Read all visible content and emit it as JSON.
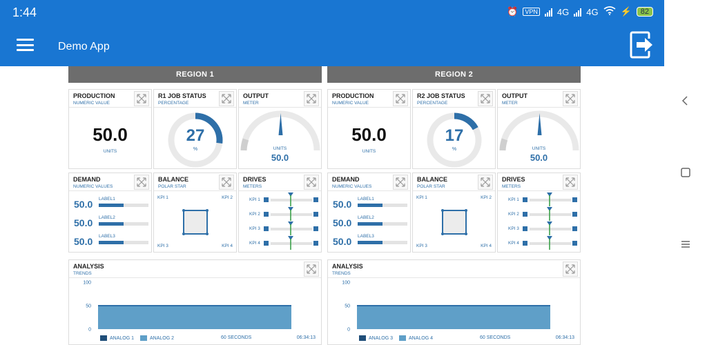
{
  "status_bar": {
    "time": "1:44",
    "vpn": "VPN",
    "net1": "4G",
    "net2": "4G",
    "battery": "82"
  },
  "app_bar": {
    "title": "Demo App"
  },
  "colors": {
    "primary": "#1976d2",
    "accent": "#2e6fa8",
    "chart_fill": "#5f9fc8",
    "region_header": "#6d6d6d"
  },
  "icons": {
    "menu": "hamburger-icon",
    "exit": "exit-icon",
    "expand": "expand-icon",
    "back": "back-icon",
    "home": "home-icon",
    "recents": "recents-icon"
  },
  "regions": [
    {
      "title": "REGION 1",
      "production": {
        "title": "PRODUCTION",
        "subtitle": "NUMERIC VALUE",
        "value": "50.0",
        "units": "UNITS"
      },
      "job_status": {
        "title": "R1 JOB STATUS",
        "subtitle": "PERCENTAGE",
        "value": "27",
        "unit": "%",
        "percent": 27
      },
      "output": {
        "title": "OUTPUT",
        "subtitle": "METER",
        "units": "UNITS",
        "value": "50.0"
      },
      "demand": {
        "title": "DEMAND",
        "subtitle": "NUMERIC VALUES",
        "rows": [
          {
            "value": "50.0",
            "label": "LABEL1",
            "fraction": 0.5
          },
          {
            "value": "50.0",
            "label": "LABEL2",
            "fraction": 0.5
          },
          {
            "value": "50.0",
            "label": "LABEL3",
            "fraction": 0.5
          }
        ]
      },
      "balance": {
        "title": "BALANCE",
        "subtitle": "POLAR STAR",
        "kpi1": "KPI 1",
        "kpi2": "KPI 2",
        "kpi3": "KPI 3",
        "kpi4": "KPI 4"
      },
      "drives": {
        "title": "DRIVES",
        "subtitle": "METERS",
        "labels": [
          "KPI 1",
          "KPI 2",
          "KPI 3",
          "KPI 4"
        ]
      },
      "analysis": {
        "title": "ANALYSIS",
        "subtitle": "TRENDS",
        "legend1": "ANALOG 1",
        "legend2": "ANALOG 2",
        "window": "60 SECONDS",
        "time": "06:34:13",
        "chart_data": {
          "type": "area",
          "y_ticks": [
            "100",
            "50",
            "0"
          ],
          "ylim": [
            0,
            100
          ],
          "series": [
            {
              "name": "ANALOG 1",
              "value": 50
            },
            {
              "name": "ANALOG 2",
              "value": 50
            }
          ]
        }
      }
    },
    {
      "title": "REGION 2",
      "production": {
        "title": "PRODUCTION",
        "subtitle": "NUMERIC VALUE",
        "value": "50.0",
        "units": "UNITS"
      },
      "job_status": {
        "title": "R2 JOB STATUS",
        "subtitle": "PERCENTAGE",
        "value": "17",
        "unit": "%",
        "percent": 17
      },
      "output": {
        "title": "OUTPUT",
        "subtitle": "METER",
        "units": "UNITS",
        "value": "50.0"
      },
      "demand": {
        "title": "DEMAND",
        "subtitle": "NUMERIC VALUES",
        "rows": [
          {
            "value": "50.0",
            "label": "LABEL1",
            "fraction": 0.5
          },
          {
            "value": "50.0",
            "label": "LABEL2",
            "fraction": 0.5
          },
          {
            "value": "50.0",
            "label": "LABEL3",
            "fraction": 0.5
          }
        ]
      },
      "balance": {
        "title": "BALANCE",
        "subtitle": "POLAR STAR",
        "kpi1": "KPI 1",
        "kpi2": "KPI 2",
        "kpi3": "KPI 3",
        "kpi4": "KPI 4"
      },
      "drives": {
        "title": "DRIVES",
        "subtitle": "METERS",
        "labels": [
          "KPI 1",
          "KPI 2",
          "KPI 3",
          "KPI 4"
        ]
      },
      "analysis": {
        "title": "ANALYSIS",
        "subtitle": "TRENDS",
        "legend1": "ANALOG 3",
        "legend2": "ANALOG 4",
        "window": "60 SECONDS",
        "time": "06:34:13",
        "chart_data": {
          "type": "area",
          "y_ticks": [
            "100",
            "50",
            "0"
          ],
          "ylim": [
            0,
            100
          ],
          "series": [
            {
              "name": "ANALOG 3",
              "value": 50
            },
            {
              "name": "ANALOG 4",
              "value": 50
            }
          ]
        }
      }
    }
  ]
}
